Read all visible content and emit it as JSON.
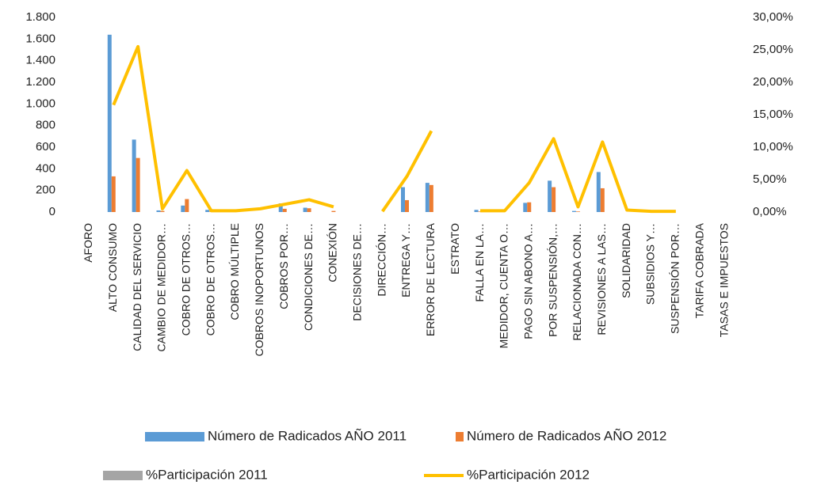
{
  "chart_data": {
    "type": "bar_line",
    "categories": [
      "AFORO",
      "ALTO CONSUMO",
      "CALIDAD DEL SERVICIO",
      "CAMBIO DE MEDIDOR…",
      "COBRO DE OTROS…",
      "COBRO DE OTROS…",
      "COBRO MÚLTIPLE",
      "COBROS INOPORTUNOS",
      "COBROS POR…",
      "CONDICIONES DE…",
      "CONEXIÓN",
      "DECISIONES DE…",
      "DIRECCIÓN…",
      "ENTREGA Y…",
      "ERROR DE LECTURA",
      "ESTRATO",
      "FALLA EN LA…",
      "MEDIDOR, CUENTA O…",
      "PAGO SIN ABONO A…",
      "POR SUSPENSIÓN,…",
      "RELACIONADA CON…",
      "REVISIONES A LAS…",
      "SOLIDARIDAD",
      "SUBSIDIOS Y…",
      "SUSPENSIÓN POR…",
      "TARIFA COBRADA",
      "TASAS E IMPUESTOS"
    ],
    "series": [
      {
        "name": "Número de Radicados AÑO 2011",
        "color": "#5b9bd5",
        "kind": "bar",
        "values": [
          0,
          1640,
          670,
          15,
          60,
          20,
          0,
          0,
          80,
          40,
          0,
          0,
          0,
          230,
          270,
          0,
          20,
          0,
          85,
          290,
          10,
          370,
          0,
          0,
          0,
          0,
          0
        ]
      },
      {
        "name": "Número de Radicados AÑO 2012",
        "color": "#ed7d31",
        "kind": "bar",
        "values": [
          0,
          330,
          500,
          10,
          120,
          5,
          0,
          0,
          30,
          35,
          10,
          0,
          0,
          110,
          250,
          0,
          5,
          0,
          90,
          230,
          5,
          220,
          0,
          5,
          0,
          0,
          0
        ]
      },
      {
        "name": "%Participación  2011",
        "color": "#a5a5a5",
        "kind": "bar",
        "axis": "y2",
        "values": [
          null,
          null,
          null,
          null,
          null,
          null,
          null,
          null,
          null,
          null,
          null,
          null,
          null,
          null,
          null,
          null,
          null,
          null,
          null,
          null,
          null,
          null,
          null,
          null,
          null,
          null,
          null
        ]
      },
      {
        "name": "%Participación  2012",
        "color": "#ffc000",
        "kind": "line",
        "axis": "y2",
        "values": [
          null,
          16.5,
          25.5,
          0.5,
          6.4,
          0.2,
          0.2,
          0.5,
          1.2,
          1.9,
          0.8,
          null,
          0.1,
          5.5,
          12.5,
          null,
          0.2,
          0.2,
          4.5,
          11.3,
          0.8,
          10.8,
          0.3,
          0.1,
          0.1,
          null,
          null
        ]
      }
    ],
    "ylim": [
      0,
      1800
    ],
    "yticks": [
      0,
      200,
      400,
      600,
      800,
      {
        "value": 1000,
        "label": "1.000"
      },
      {
        "value": 1200,
        "label": "1.200"
      },
      {
        "value": 1400,
        "label": "1.400"
      },
      {
        "value": 1600,
        "label": "1.600"
      },
      {
        "value": 1800,
        "label": "1.800"
      }
    ],
    "y2lim": [
      0,
      30
    ],
    "y2ticks": [
      {
        "value": 0,
        "label": "0,00%"
      },
      {
        "value": 5,
        "label": "5,00%"
      },
      {
        "value": 10,
        "label": "10,00%"
      },
      {
        "value": 15,
        "label": "15,00%"
      },
      {
        "value": 20,
        "label": "20,00%"
      },
      {
        "value": 25,
        "label": "25,00%"
      },
      {
        "value": 30,
        "label": "30,00%"
      }
    ],
    "legend": "bottom"
  }
}
